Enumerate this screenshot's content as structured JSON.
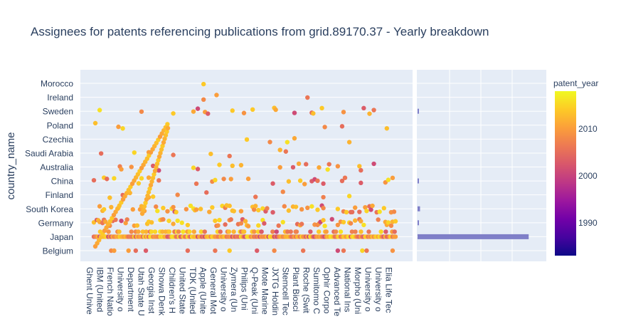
{
  "chart_data": {
    "type": "scatter",
    "title": "Assignees for patents referencing publications from grid.89170.37 - Yearly breakdown",
    "xlabel": "",
    "ylabel": "country_name",
    "categories_y": [
      "Belgium",
      "Japan",
      "Germany",
      "South Korea",
      "Finland",
      "China",
      "Australia",
      "Saudi Arabia",
      "Czechia",
      "Poland",
      "Sweden",
      "Ireland",
      "Morocco"
    ],
    "x_tick_labels": [
      "Ghent Unive",
      "IBM (United",
      "French Natio",
      "University o",
      "Department",
      "Utah State U",
      "Georgia Inst",
      "Showa Denk",
      "Children's H",
      "United State",
      "TDK (United",
      "Apple (Unite",
      "General Mot",
      "University o",
      "Zymera (Un",
      "Philips (Uni",
      "Q-Peak (Uni",
      "Mote Marine",
      "JXTG Holdin",
      "Stemcell Tec",
      "Plant Biosci",
      "Roche (Swit",
      "Sumitomo C",
      "Ophir Corpo",
      "Advanced Te",
      "National Ins",
      "Morpho (Uni",
      "University o",
      "University o",
      "Elia Life Tec"
    ],
    "colorbar": {
      "title": "patent_year",
      "ticks": [
        1990,
        2000,
        2010
      ],
      "range": [
        1983,
        2018
      ],
      "colorscale": [
        "#0d0887",
        "#46039f",
        "#7201a8",
        "#9c179e",
        "#bd3786",
        "#d8576b",
        "#ed7953",
        "#fb9f3a",
        "#fdca26",
        "#f0f921"
      ]
    },
    "marginal_histogram": {
      "category_counts": {
        "Belgium": 0,
        "Japan": 135,
        "Germany": 1,
        "South Korea": 3,
        "Finland": 0,
        "China": 1,
        "Australia": 0,
        "Saudi Arabia": 0,
        "Czechia": 0,
        "Poland": 0,
        "Sweden": 1,
        "Ireland": 0,
        "Morocco": 0
      },
      "color": "#7f7fc8"
    }
  }
}
